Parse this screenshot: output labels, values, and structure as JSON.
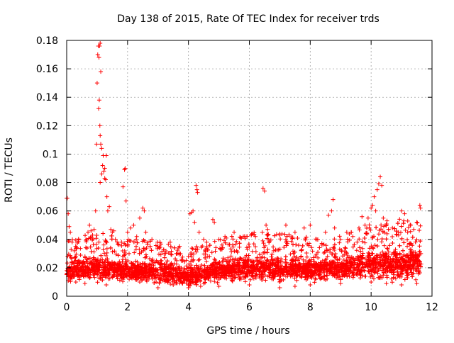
{
  "chart_data": {
    "type": "scatter",
    "title": "Day 138 of 2015, Rate Of TEC Index for receiver trds",
    "xlabel": "GPS time / hours",
    "ylabel": "ROTI / TECUs",
    "xlim": [
      0,
      12
    ],
    "ylim": [
      0,
      0.18
    ],
    "x_ticks": [
      0,
      2,
      4,
      6,
      8,
      10,
      12
    ],
    "x_tick_labels": [
      "0",
      "2",
      "4",
      "6",
      "8",
      "10",
      "12"
    ],
    "y_ticks": [
      0,
      0.02,
      0.04,
      0.06,
      0.08,
      0.1,
      0.12,
      0.14,
      0.16,
      0.18
    ],
    "y_tick_labels": [
      "0",
      "0.02",
      "0.04",
      "0.06",
      "0.08",
      "0.1",
      "0.12",
      "0.14",
      "0.16",
      "0.18"
    ],
    "grid": true,
    "marker": "plus",
    "series": [
      {
        "name": "ROTI",
        "color": "#ff0000",
        "points": [
          [
            0.0,
            0.069
          ],
          [
            0.02,
            0.069
          ],
          [
            0.05,
            0.058
          ],
          [
            0.08,
            0.049
          ],
          [
            0.12,
            0.045
          ],
          [
            0.18,
            0.038
          ],
          [
            0.25,
            0.032
          ],
          [
            0.3,
            0.028
          ],
          [
            0.4,
            0.025
          ],
          [
            0.5,
            0.024
          ],
          [
            0.6,
            0.028
          ],
          [
            0.7,
            0.045
          ],
          [
            0.75,
            0.05
          ],
          [
            0.8,
            0.046
          ],
          [
            0.85,
            0.043
          ],
          [
            0.9,
            0.047
          ],
          [
            0.95,
            0.06
          ],
          [
            0.98,
            0.107
          ],
          [
            1.0,
            0.15
          ],
          [
            1.02,
            0.17
          ],
          [
            1.04,
            0.176
          ],
          [
            1.06,
            0.168
          ],
          [
            1.08,
            0.176
          ],
          [
            1.1,
            0.178
          ],
          [
            1.12,
            0.158
          ],
          [
            1.07,
            0.138
          ],
          [
            1.05,
            0.132
          ],
          [
            1.09,
            0.12
          ],
          [
            1.1,
            0.113
          ],
          [
            1.12,
            0.107
          ],
          [
            1.15,
            0.104
          ],
          [
            1.18,
            0.092
          ],
          [
            1.2,
            0.099
          ],
          [
            1.22,
            0.088
          ],
          [
            1.25,
            0.083
          ],
          [
            1.28,
            0.082
          ],
          [
            1.3,
            0.099
          ],
          [
            1.25,
            0.09
          ],
          [
            1.15,
            0.086
          ],
          [
            1.1,
            0.08
          ],
          [
            1.32,
            0.07
          ],
          [
            1.35,
            0.06
          ],
          [
            1.4,
            0.063
          ],
          [
            1.45,
            0.047
          ],
          [
            1.5,
            0.045
          ],
          [
            1.55,
            0.046
          ],
          [
            1.6,
            0.04
          ],
          [
            1.8,
            0.038
          ],
          [
            1.85,
            0.077
          ],
          [
            1.9,
            0.089
          ],
          [
            1.92,
            0.09
          ],
          [
            1.95,
            0.067
          ],
          [
            2.0,
            0.045
          ],
          [
            2.1,
            0.048
          ],
          [
            2.2,
            0.05
          ],
          [
            2.3,
            0.042
          ],
          [
            2.4,
            0.055
          ],
          [
            2.5,
            0.062
          ],
          [
            2.55,
            0.06
          ],
          [
            2.6,
            0.045
          ],
          [
            2.8,
            0.04
          ],
          [
            3.0,
            0.035
          ],
          [
            3.2,
            0.03
          ],
          [
            3.4,
            0.038
          ],
          [
            3.6,
            0.03
          ],
          [
            3.8,
            0.025
          ],
          [
            4.0,
            0.028
          ],
          [
            4.05,
            0.058
          ],
          [
            4.1,
            0.059
          ],
          [
            4.15,
            0.06
          ],
          [
            4.2,
            0.052
          ],
          [
            4.25,
            0.078
          ],
          [
            4.28,
            0.075
          ],
          [
            4.3,
            0.073
          ],
          [
            4.35,
            0.045
          ],
          [
            4.5,
            0.04
          ],
          [
            4.6,
            0.038
          ],
          [
            4.8,
            0.054
          ],
          [
            4.85,
            0.052
          ],
          [
            5.0,
            0.04
          ],
          [
            5.2,
            0.042
          ],
          [
            5.5,
            0.045
          ],
          [
            5.8,
            0.042
          ],
          [
            6.1,
            0.044
          ],
          [
            6.2,
            0.042
          ],
          [
            6.45,
            0.076
          ],
          [
            6.5,
            0.074
          ],
          [
            6.55,
            0.05
          ],
          [
            6.6,
            0.047
          ],
          [
            7.0,
            0.043
          ],
          [
            7.2,
            0.05
          ],
          [
            7.5,
            0.045
          ],
          [
            7.8,
            0.048
          ],
          [
            8.0,
            0.05
          ],
          [
            8.2,
            0.04
          ],
          [
            8.5,
            0.045
          ],
          [
            8.6,
            0.057
          ],
          [
            8.7,
            0.06
          ],
          [
            8.75,
            0.068
          ],
          [
            8.8,
            0.048
          ],
          [
            9.0,
            0.04
          ],
          [
            9.2,
            0.045
          ],
          [
            9.4,
            0.042
          ],
          [
            9.6,
            0.048
          ],
          [
            9.7,
            0.056
          ],
          [
            9.8,
            0.05
          ],
          [
            9.9,
            0.055
          ],
          [
            10.0,
            0.062
          ],
          [
            10.05,
            0.064
          ],
          [
            10.1,
            0.07
          ],
          [
            10.15,
            0.06
          ],
          [
            10.2,
            0.075
          ],
          [
            10.25,
            0.079
          ],
          [
            10.3,
            0.084
          ],
          [
            10.35,
            0.078
          ],
          [
            10.4,
            0.055
          ],
          [
            10.5,
            0.05
          ],
          [
            10.7,
            0.048
          ],
          [
            10.9,
            0.045
          ],
          [
            11.0,
            0.06
          ],
          [
            11.1,
            0.058
          ],
          [
            11.2,
            0.045
          ],
          [
            11.3,
            0.05
          ],
          [
            11.4,
            0.047
          ],
          [
            11.5,
            0.052
          ],
          [
            11.6,
            0.064
          ],
          [
            11.62,
            0.062
          ],
          [
            0.1,
            0.012
          ],
          [
            0.3,
            0.01
          ],
          [
            0.6,
            0.009
          ],
          [
            1.3,
            0.008
          ],
          [
            2.4,
            0.01
          ],
          [
            3.0,
            0.006
          ],
          [
            3.5,
            0.008
          ],
          [
            4.0,
            0.006
          ],
          [
            4.4,
            0.007
          ],
          [
            5.0,
            0.007
          ],
          [
            6.0,
            0.008
          ],
          [
            7.0,
            0.006
          ],
          [
            7.5,
            0.007
          ],
          [
            8.0,
            0.008
          ],
          [
            9.0,
            0.009
          ],
          [
            10.0,
            0.01
          ],
          [
            10.5,
            0.009
          ],
          [
            11.0,
            0.008
          ],
          [
            11.5,
            0.009
          ]
        ],
        "dense_band": {
          "x_range": [
            0,
            11.65
          ],
          "baseline": [
            [
              0,
              0.018
            ],
            [
              1,
              0.02
            ],
            [
              2,
              0.018
            ],
            [
              3,
              0.017
            ],
            [
              4,
              0.014
            ],
            [
              5,
              0.018
            ],
            [
              6,
              0.02
            ],
            [
              7,
              0.02
            ],
            [
              8,
              0.019
            ],
            [
              9,
              0.02
            ],
            [
              10,
              0.023
            ],
            [
              11,
              0.022
            ],
            [
              11.65,
              0.024
            ]
          ],
          "spread": [
            [
              0,
              0.008
            ],
            [
              1,
              0.009
            ],
            [
              2,
              0.008
            ],
            [
              3,
              0.008
            ],
            [
              4,
              0.007
            ],
            [
              5,
              0.008
            ],
            [
              6,
              0.009
            ],
            [
              7,
              0.009
            ],
            [
              8,
              0.008
            ],
            [
              9,
              0.008
            ],
            [
              10,
              0.01
            ],
            [
              11,
              0.012
            ],
            [
              11.65,
              0.012
            ]
          ]
        }
      }
    ]
  }
}
